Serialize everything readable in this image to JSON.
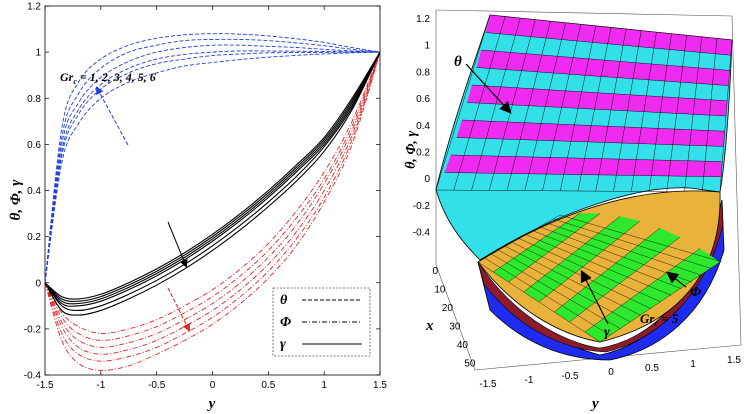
{
  "chart_data": [
    {
      "type": "line",
      "xlabel": "y",
      "ylabel": "θ, Φ, γ",
      "xlim": [
        -1.5,
        1.5
      ],
      "ylim": [
        -0.4,
        1.2
      ],
      "xticks": [
        "-1.5",
        "-1",
        "-0.5",
        "0",
        "0.5",
        "1",
        "1.5"
      ],
      "yticks": [
        "-0.4",
        "-0.2",
        "0",
        "0.2",
        "0.4",
        "0.6",
        "0.8",
        "1",
        "1.2"
      ],
      "grid": false,
      "annotation": "Grc = 1, 2, 3, 4, 5, 6",
      "annotation_parts": {
        "base": "Gr",
        "sub": "c",
        "rest": " = 1, 2, 3, 4, 5, 6"
      },
      "legend": {
        "position": "bottom-right",
        "entries": [
          {
            "label": "θ",
            "style": "dashed"
          },
          {
            "label": "Φ",
            "style": "dash-dot"
          },
          {
            "label": "γ",
            "style": "solid"
          }
        ]
      },
      "series": [
        {
          "group": "θ",
          "color": "#1f3fd6",
          "style": "dashed",
          "x": [
            -1.5,
            -1.35,
            -1.2,
            -1.0,
            -0.75,
            -0.5,
            -0.25,
            0,
            0.25,
            0.5,
            0.75,
            1.0,
            1.25,
            1.5
          ],
          "y": [
            0,
            0.52,
            0.69,
            0.8,
            0.87,
            0.91,
            0.94,
            0.955,
            0.968,
            0.978,
            0.986,
            0.992,
            0.997,
            1.0
          ]
        },
        {
          "group": "θ",
          "color": "#1f3fd6",
          "style": "dashed",
          "x": [
            -1.5,
            -1.35,
            -1.2,
            -1.0,
            -0.75,
            -0.5,
            -0.25,
            0,
            0.25,
            0.5,
            0.75,
            1.0,
            1.25,
            1.5
          ],
          "y": [
            0,
            0.55,
            0.73,
            0.84,
            0.91,
            0.95,
            0.97,
            0.985,
            0.992,
            0.997,
            0.998,
            0.999,
            1.0,
            1.0
          ]
        },
        {
          "group": "θ",
          "color": "#1f3fd6",
          "style": "dashed",
          "x": [
            -1.5,
            -1.35,
            -1.2,
            -1.0,
            -0.75,
            -0.5,
            -0.25,
            0,
            0.25,
            0.5,
            0.75,
            1.0,
            1.25,
            1.5
          ],
          "y": [
            0,
            0.57,
            0.75,
            0.86,
            0.93,
            0.97,
            0.99,
            1.0,
            1.005,
            1.005,
            1.004,
            1.003,
            1.001,
            1.0
          ]
        },
        {
          "group": "θ",
          "color": "#1f3fd6",
          "style": "dashed",
          "x": [
            -1.5,
            -1.35,
            -1.2,
            -1.0,
            -0.75,
            -0.5,
            -0.25,
            0,
            0.25,
            0.5,
            0.75,
            1.0,
            1.25,
            1.5
          ],
          "y": [
            0,
            0.6,
            0.78,
            0.89,
            0.96,
            1.0,
            1.02,
            1.03,
            1.03,
            1.025,
            1.02,
            1.012,
            1.005,
            1.0
          ]
        },
        {
          "group": "θ",
          "color": "#1f3fd6",
          "style": "dashed",
          "x": [
            -1.5,
            -1.35,
            -1.2,
            -1.0,
            -0.75,
            -0.5,
            -0.25,
            0,
            0.25,
            0.5,
            0.75,
            1.0,
            1.25,
            1.5
          ],
          "y": [
            0,
            0.63,
            0.82,
            0.93,
            1.0,
            1.03,
            1.05,
            1.055,
            1.055,
            1.05,
            1.04,
            1.028,
            1.012,
            1.0
          ]
        },
        {
          "group": "θ",
          "color": "#1f3fd6",
          "style": "dashed",
          "x": [
            -1.5,
            -1.35,
            -1.2,
            -1.0,
            -0.75,
            -0.5,
            -0.25,
            0,
            0.25,
            0.5,
            0.75,
            1.0,
            1.25,
            1.5
          ],
          "y": [
            0,
            0.67,
            0.87,
            0.97,
            1.03,
            1.06,
            1.075,
            1.08,
            1.078,
            1.07,
            1.058,
            1.042,
            1.02,
            1.0
          ]
        },
        {
          "group": "Φ",
          "color": "#e32222",
          "style": "dash-dot",
          "x": [
            -1.5,
            -1.35,
            -1.2,
            -1.0,
            -0.75,
            -0.5,
            -0.25,
            0,
            0.25,
            0.5,
            0.75,
            1.0,
            1.25,
            1.5
          ],
          "y": [
            0,
            -0.13,
            -0.19,
            -0.22,
            -0.2,
            -0.16,
            -0.1,
            -0.03,
            0.06,
            0.17,
            0.31,
            0.48,
            0.7,
            1.0
          ]
        },
        {
          "group": "Φ",
          "color": "#e32222",
          "style": "dash-dot",
          "x": [
            -1.5,
            -1.35,
            -1.2,
            -1.0,
            -0.75,
            -0.5,
            -0.25,
            0,
            0.25,
            0.5,
            0.75,
            1.0,
            1.25,
            1.5
          ],
          "y": [
            0,
            -0.15,
            -0.22,
            -0.25,
            -0.23,
            -0.19,
            -0.13,
            -0.06,
            0.03,
            0.14,
            0.28,
            0.45,
            0.68,
            1.0
          ]
        },
        {
          "group": "Φ",
          "color": "#e32222",
          "style": "dash-dot",
          "x": [
            -1.5,
            -1.35,
            -1.2,
            -1.0,
            -0.75,
            -0.5,
            -0.25,
            0,
            0.25,
            0.5,
            0.75,
            1.0,
            1.25,
            1.5
          ],
          "y": [
            0,
            -0.17,
            -0.25,
            -0.28,
            -0.26,
            -0.22,
            -0.16,
            -0.09,
            0.0,
            0.11,
            0.25,
            0.43,
            0.66,
            1.0
          ]
        },
        {
          "group": "Φ",
          "color": "#e32222",
          "style": "dash-dot",
          "x": [
            -1.5,
            -1.35,
            -1.2,
            -1.0,
            -0.75,
            -0.5,
            -0.25,
            0,
            0.25,
            0.5,
            0.75,
            1.0,
            1.25,
            1.5
          ],
          "y": [
            0,
            -0.19,
            -0.28,
            -0.31,
            -0.29,
            -0.25,
            -0.19,
            -0.12,
            -0.03,
            0.08,
            0.22,
            0.4,
            0.64,
            1.0
          ]
        },
        {
          "group": "Φ",
          "color": "#e32222",
          "style": "dash-dot",
          "x": [
            -1.5,
            -1.35,
            -1.2,
            -1.0,
            -0.75,
            -0.5,
            -0.25,
            0,
            0.25,
            0.5,
            0.75,
            1.0,
            1.25,
            1.5
          ],
          "y": [
            0,
            -0.22,
            -0.31,
            -0.34,
            -0.32,
            -0.28,
            -0.22,
            -0.15,
            -0.06,
            0.05,
            0.19,
            0.37,
            0.62,
            1.0
          ]
        },
        {
          "group": "Φ",
          "color": "#e32222",
          "style": "dash-dot",
          "x": [
            -1.5,
            -1.35,
            -1.2,
            -1.0,
            -0.75,
            -0.5,
            -0.25,
            0,
            0.25,
            0.5,
            0.75,
            1.0,
            1.25,
            1.5
          ],
          "y": [
            0,
            -0.25,
            -0.35,
            -0.38,
            -0.36,
            -0.31,
            -0.25,
            -0.18,
            -0.09,
            0.02,
            0.16,
            0.35,
            0.6,
            1.0
          ]
        },
        {
          "group": "γ",
          "color": "#000000",
          "style": "solid",
          "x": [
            -1.5,
            -1.35,
            -1.2,
            -1.0,
            -0.75,
            -0.5,
            -0.25,
            0,
            0.25,
            0.5,
            0.75,
            1.0,
            1.25,
            1.5
          ],
          "y": [
            0,
            -0.06,
            -0.07,
            -0.05,
            0.0,
            0.06,
            0.13,
            0.21,
            0.3,
            0.4,
            0.51,
            0.63,
            0.8,
            1.0
          ]
        },
        {
          "group": "γ",
          "color": "#000000",
          "style": "solid",
          "x": [
            -1.5,
            -1.35,
            -1.2,
            -1.0,
            -0.75,
            -0.5,
            -0.25,
            0,
            0.25,
            0.5,
            0.75,
            1.0,
            1.25,
            1.5
          ],
          "y": [
            0,
            -0.07,
            -0.08,
            -0.06,
            -0.01,
            0.05,
            0.12,
            0.2,
            0.29,
            0.39,
            0.5,
            0.62,
            0.79,
            1.0
          ]
        },
        {
          "group": "γ",
          "color": "#000000",
          "style": "solid",
          "x": [
            -1.5,
            -1.35,
            -1.2,
            -1.0,
            -0.75,
            -0.5,
            -0.25,
            0,
            0.25,
            0.5,
            0.75,
            1.0,
            1.25,
            1.5
          ],
          "y": [
            0,
            -0.08,
            -0.09,
            -0.07,
            -0.02,
            0.04,
            0.11,
            0.19,
            0.28,
            0.38,
            0.49,
            0.61,
            0.78,
            1.0
          ]
        },
        {
          "group": "γ",
          "color": "#000000",
          "style": "solid",
          "x": [
            -1.5,
            -1.35,
            -1.2,
            -1.0,
            -0.75,
            -0.5,
            -0.25,
            0,
            0.25,
            0.5,
            0.75,
            1.0,
            1.25,
            1.5
          ],
          "y": [
            0,
            -0.09,
            -0.1,
            -0.08,
            -0.03,
            0.03,
            0.1,
            0.18,
            0.27,
            0.37,
            0.48,
            0.6,
            0.77,
            1.0
          ]
        },
        {
          "group": "γ",
          "color": "#000000",
          "style": "solid",
          "x": [
            -1.5,
            -1.35,
            -1.2,
            -1.0,
            -0.75,
            -0.5,
            -0.25,
            0,
            0.25,
            0.5,
            0.75,
            1.0,
            1.25,
            1.5
          ],
          "y": [
            0,
            -0.1,
            -0.12,
            -0.1,
            -0.05,
            0.01,
            0.08,
            0.16,
            0.25,
            0.35,
            0.46,
            0.59,
            0.76,
            1.0
          ]
        },
        {
          "group": "γ",
          "color": "#000000",
          "style": "solid",
          "x": [
            -1.5,
            -1.35,
            -1.2,
            -1.0,
            -0.75,
            -0.5,
            -0.25,
            0,
            0.25,
            0.5,
            0.75,
            1.0,
            1.25,
            1.5
          ],
          "y": [
            0,
            -0.12,
            -0.14,
            -0.12,
            -0.07,
            -0.01,
            0.06,
            0.14,
            0.23,
            0.33,
            0.44,
            0.57,
            0.75,
            1.0
          ]
        }
      ]
    },
    {
      "type": "surface",
      "zlabel": "θ, Φ, γ",
      "xlabel": "x",
      "ylabel": "y",
      "zticks": [
        "1.2",
        "1",
        "0.8",
        "0.6",
        "0.4",
        "0.2",
        "0",
        "-0.2",
        "-0.4"
      ],
      "xticks": [
        "0",
        "10",
        "20",
        "30",
        "40",
        "50"
      ],
      "yticks": [
        "-1.5",
        "-1",
        "-0.5",
        "0",
        "0.5",
        "1",
        "1.5"
      ],
      "annotation": "Grc = 5",
      "annotation_parts": {
        "base": "Gr",
        "sub": "c",
        "rest": " = 5"
      },
      "surfaces": [
        {
          "label": "θ",
          "colors": [
            "#33e0ea",
            "#ee2bee"
          ]
        },
        {
          "label": "Φ",
          "colors": [
            "#1e2bf0",
            "#8c1c2c"
          ]
        },
        {
          "label": "γ",
          "colors": [
            "#e9b23a",
            "#2ee82e"
          ]
        }
      ]
    }
  ]
}
